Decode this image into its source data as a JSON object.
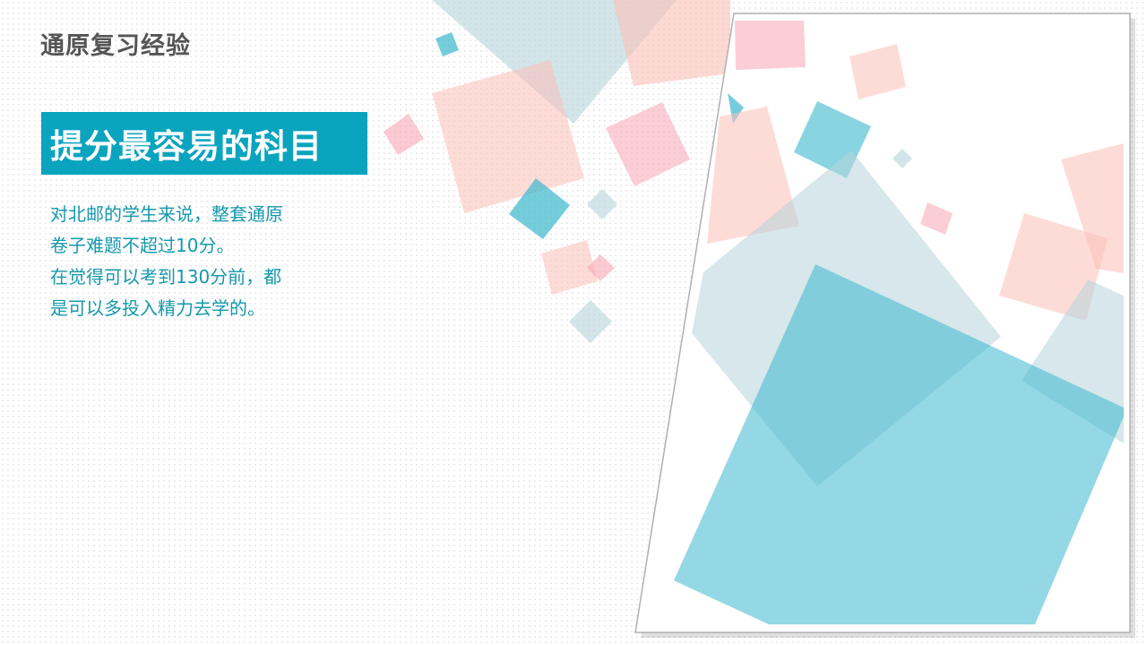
{
  "slide": {
    "title": "通原复习经验",
    "headline": "提分最容易的科目",
    "body_lines": [
      "对北邮的学生来说，整套通原",
      "卷子难题不超过10分。",
      "在觉得可以考到130分前，都",
      "是可以多投入精力去学的。"
    ]
  },
  "colors": {
    "accent": "#0ba4bf",
    "title_gray": "#555555",
    "body_text": "#1699ac",
    "pink": "#f8a6b6",
    "salmon": "#fcc0b8",
    "teal": "#3ab8cd",
    "gray_teal": "#b6d3da"
  }
}
